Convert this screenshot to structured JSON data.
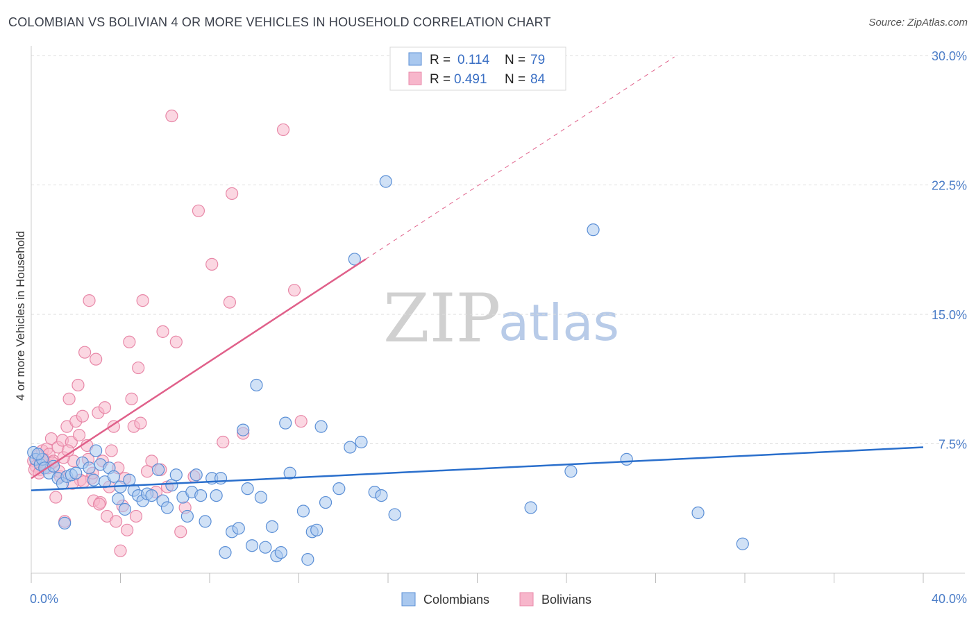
{
  "title": "COLOMBIAN VS BOLIVIAN 4 OR MORE VEHICLES IN HOUSEHOLD CORRELATION CHART",
  "source": "Source: ZipAtlas.com",
  "watermark": {
    "zip": "ZIP",
    "atlas": "atlas"
  },
  "legend": {
    "r_label": "R =",
    "n_label": "N =",
    "rows": [
      {
        "r": "0.114",
        "n": "79"
      },
      {
        "r": "0.491",
        "n": "84"
      }
    ]
  },
  "bottom_legend": [
    "Colombians",
    "Bolivians"
  ],
  "colors": {
    "colombians_fill": "#a9c8ef",
    "colombians_stroke": "#5b8fd6",
    "colombians_line": "#2a6fcc",
    "bolivians_fill": "#f7b6cb",
    "bolivians_stroke": "#e888a8",
    "bolivians_line": "#e0608a",
    "tick_text": "#4a7cc7",
    "grid": "#dddddd"
  },
  "chart_data": {
    "type": "scatter",
    "title": "COLOMBIAN VS BOLIVIAN 4 OR MORE VEHICLES IN HOUSEHOLD CORRELATION CHART",
    "xlabel": "",
    "ylabel": "4 or more Vehicles in Household",
    "xlim": [
      0,
      40
    ],
    "ylim": [
      0,
      30
    ],
    "x_tick_labels": [
      "0.0%",
      "40.0%"
    ],
    "y_ticks": [
      7.5,
      15.0,
      22.5,
      30.0
    ],
    "y_tick_labels": [
      "7.5%",
      "15.0%",
      "22.5%",
      "30.0%"
    ],
    "grid": true,
    "legend_position": "top-center",
    "series": [
      {
        "name": "Colombians",
        "trend": {
          "x0": 0,
          "y0": 4.8,
          "x1": 40,
          "y1": 7.3,
          "dashed_to": null
        },
        "points": [
          [
            0.1,
            7.0
          ],
          [
            0.2,
            6.6
          ],
          [
            0.4,
            6.3
          ],
          [
            0.5,
            6.6
          ],
          [
            0.6,
            6.1
          ],
          [
            0.8,
            5.8
          ],
          [
            1.0,
            6.2
          ],
          [
            1.2,
            5.5
          ],
          [
            1.4,
            5.2
          ],
          [
            1.6,
            5.6
          ],
          [
            1.8,
            5.7
          ],
          [
            2.0,
            5.8
          ],
          [
            2.3,
            6.4
          ],
          [
            2.6,
            6.1
          ],
          [
            2.8,
            5.4
          ],
          [
            2.9,
            7.1
          ],
          [
            3.1,
            6.3
          ],
          [
            3.3,
            5.3
          ],
          [
            3.5,
            6.1
          ],
          [
            3.7,
            5.6
          ],
          [
            3.9,
            4.3
          ],
          [
            4.0,
            5.0
          ],
          [
            4.2,
            3.7
          ],
          [
            4.4,
            5.4
          ],
          [
            4.6,
            4.8
          ],
          [
            4.8,
            4.5
          ],
          [
            5.0,
            4.2
          ],
          [
            5.2,
            4.6
          ],
          [
            5.4,
            4.5
          ],
          [
            5.7,
            6.0
          ],
          [
            5.9,
            4.2
          ],
          [
            6.1,
            3.8
          ],
          [
            6.3,
            5.1
          ],
          [
            6.5,
            5.7
          ],
          [
            6.8,
            4.4
          ],
          [
            7.0,
            3.3
          ],
          [
            7.2,
            4.7
          ],
          [
            7.4,
            5.7
          ],
          [
            7.6,
            4.5
          ],
          [
            7.8,
            3.0
          ],
          [
            8.1,
            5.5
          ],
          [
            8.3,
            4.5
          ],
          [
            8.5,
            5.5
          ],
          [
            8.7,
            1.2
          ],
          [
            9.0,
            2.4
          ],
          [
            9.3,
            2.6
          ],
          [
            9.5,
            8.3
          ],
          [
            9.7,
            4.9
          ],
          [
            9.9,
            1.6
          ],
          [
            10.1,
            10.9
          ],
          [
            10.3,
            4.4
          ],
          [
            10.5,
            1.5
          ],
          [
            10.8,
            2.7
          ],
          [
            11.0,
            1.0
          ],
          [
            11.2,
            1.2
          ],
          [
            11.4,
            8.7
          ],
          [
            11.6,
            5.8
          ],
          [
            12.2,
            3.6
          ],
          [
            12.4,
            0.8
          ],
          [
            12.6,
            2.4
          ],
          [
            12.8,
            2.5
          ],
          [
            13.0,
            8.5
          ],
          [
            13.2,
            4.1
          ],
          [
            13.8,
            4.9
          ],
          [
            14.3,
            7.3
          ],
          [
            14.5,
            18.2
          ],
          [
            14.8,
            7.6
          ],
          [
            15.4,
            4.7
          ],
          [
            15.7,
            4.5
          ],
          [
            15.9,
            22.7
          ],
          [
            16.3,
            3.4
          ],
          [
            22.4,
            3.8
          ],
          [
            24.2,
            5.9
          ],
          [
            25.2,
            19.9
          ],
          [
            26.7,
            6.6
          ],
          [
            29.9,
            3.5
          ],
          [
            31.9,
            1.7
          ],
          [
            0.3,
            6.9
          ],
          [
            1.5,
            2.9
          ]
        ]
      },
      {
        "name": "Bolivians",
        "trend": {
          "x0": 0,
          "y0": 5.5,
          "x1": 15,
          "y1": 18.2,
          "dashed_to": {
            "x": 40,
            "y": 39.6
          }
        },
        "points": [
          [
            0.1,
            6.5
          ],
          [
            0.2,
            6.2
          ],
          [
            0.3,
            6.8
          ],
          [
            0.4,
            6.0
          ],
          [
            0.5,
            7.1
          ],
          [
            0.6,
            6.4
          ],
          [
            0.7,
            7.2
          ],
          [
            0.8,
            6.9
          ],
          [
            0.9,
            7.8
          ],
          [
            1.0,
            6.5
          ],
          [
            1.1,
            4.4
          ],
          [
            1.2,
            7.3
          ],
          [
            1.3,
            5.6
          ],
          [
            1.4,
            7.7
          ],
          [
            1.5,
            3.0
          ],
          [
            1.6,
            8.5
          ],
          [
            1.7,
            10.1
          ],
          [
            1.8,
            7.6
          ],
          [
            1.9,
            6.5
          ],
          [
            2.0,
            8.8
          ],
          [
            2.1,
            10.9
          ],
          [
            2.2,
            5.4
          ],
          [
            2.3,
            9.1
          ],
          [
            2.4,
            12.8
          ],
          [
            2.5,
            7.4
          ],
          [
            2.6,
            15.8
          ],
          [
            2.7,
            5.5
          ],
          [
            2.8,
            4.2
          ],
          [
            2.9,
            12.4
          ],
          [
            3.0,
            9.3
          ],
          [
            3.1,
            4.1
          ],
          [
            3.2,
            6.5
          ],
          [
            3.3,
            9.6
          ],
          [
            3.4,
            3.3
          ],
          [
            3.5,
            5.0
          ],
          [
            3.6,
            7.1
          ],
          [
            3.7,
            8.5
          ],
          [
            3.8,
            3.0
          ],
          [
            3.9,
            6.1
          ],
          [
            4.0,
            1.3
          ],
          [
            4.1,
            3.9
          ],
          [
            4.2,
            5.5
          ],
          [
            4.3,
            2.5
          ],
          [
            4.4,
            13.4
          ],
          [
            4.5,
            10.1
          ],
          [
            4.6,
            8.5
          ],
          [
            4.7,
            3.3
          ],
          [
            4.8,
            11.9
          ],
          [
            4.9,
            8.7
          ],
          [
            5.0,
            15.8
          ],
          [
            5.2,
            5.9
          ],
          [
            5.4,
            6.5
          ],
          [
            5.6,
            4.7
          ],
          [
            5.8,
            6.0
          ],
          [
            5.9,
            14.0
          ],
          [
            6.1,
            5.0
          ],
          [
            6.3,
            26.5
          ],
          [
            6.5,
            13.4
          ],
          [
            6.7,
            2.4
          ],
          [
            6.9,
            3.8
          ],
          [
            7.3,
            5.6
          ],
          [
            7.5,
            21.0
          ],
          [
            8.1,
            17.9
          ],
          [
            8.6,
            7.6
          ],
          [
            8.9,
            15.7
          ],
          [
            9.0,
            22.0
          ],
          [
            9.5,
            8.1
          ],
          [
            11.3,
            25.7
          ],
          [
            11.8,
            16.4
          ],
          [
            12.1,
            8.8
          ],
          [
            0.15,
            6.0
          ],
          [
            0.35,
            5.8
          ],
          [
            0.55,
            6.6
          ],
          [
            0.75,
            6.1
          ],
          [
            0.95,
            6.4
          ],
          [
            1.25,
            5.9
          ],
          [
            1.45,
            6.7
          ],
          [
            1.65,
            7.1
          ],
          [
            1.85,
            5.2
          ],
          [
            2.15,
            8.0
          ],
          [
            2.35,
            5.3
          ],
          [
            2.55,
            6.6
          ],
          [
            2.75,
            5.8
          ],
          [
            3.05,
            4.0
          ]
        ]
      }
    ]
  }
}
